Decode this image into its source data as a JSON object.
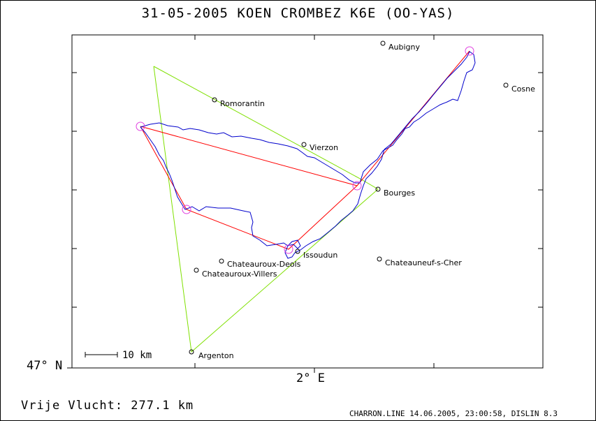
{
  "title": "31-05-2005    KOEN CROMBEZ    K6E (OO-YAS)",
  "axes": {
    "latitude_label": "47° N",
    "longitude_label": "2° E"
  },
  "scale_bar": {
    "label": "10 km"
  },
  "distance_text": "Vrije Vlucht:  277.1 km",
  "footer": "CHARRON.LINE 14.06.2005, 23:00:58, DISLIN 8.3",
  "colors": {
    "track": "#0000cc",
    "task": "#ff0000",
    "free_flight": "#7fe000",
    "turnpoint": "#e040e0"
  },
  "towns": [
    {
      "key": "aubigny",
      "name": "Aubigny"
    },
    {
      "key": "cosne",
      "name": "Cosne"
    },
    {
      "key": "romorantin",
      "name": "Romorantin"
    },
    {
      "key": "vierzon",
      "name": "Vierzon"
    },
    {
      "key": "bourges",
      "name": "Bourges"
    },
    {
      "key": "issoudun",
      "name": "Issoudun"
    },
    {
      "key": "chateauroux-deols",
      "name": "Chateauroux-Deols"
    },
    {
      "key": "chateauroux-villers",
      "name": "Chateauroux-Villers"
    },
    {
      "key": "chateauneuf",
      "name": "Chateauneuf-s-Cher"
    },
    {
      "key": "argenton",
      "name": "Argenton"
    }
  ]
}
